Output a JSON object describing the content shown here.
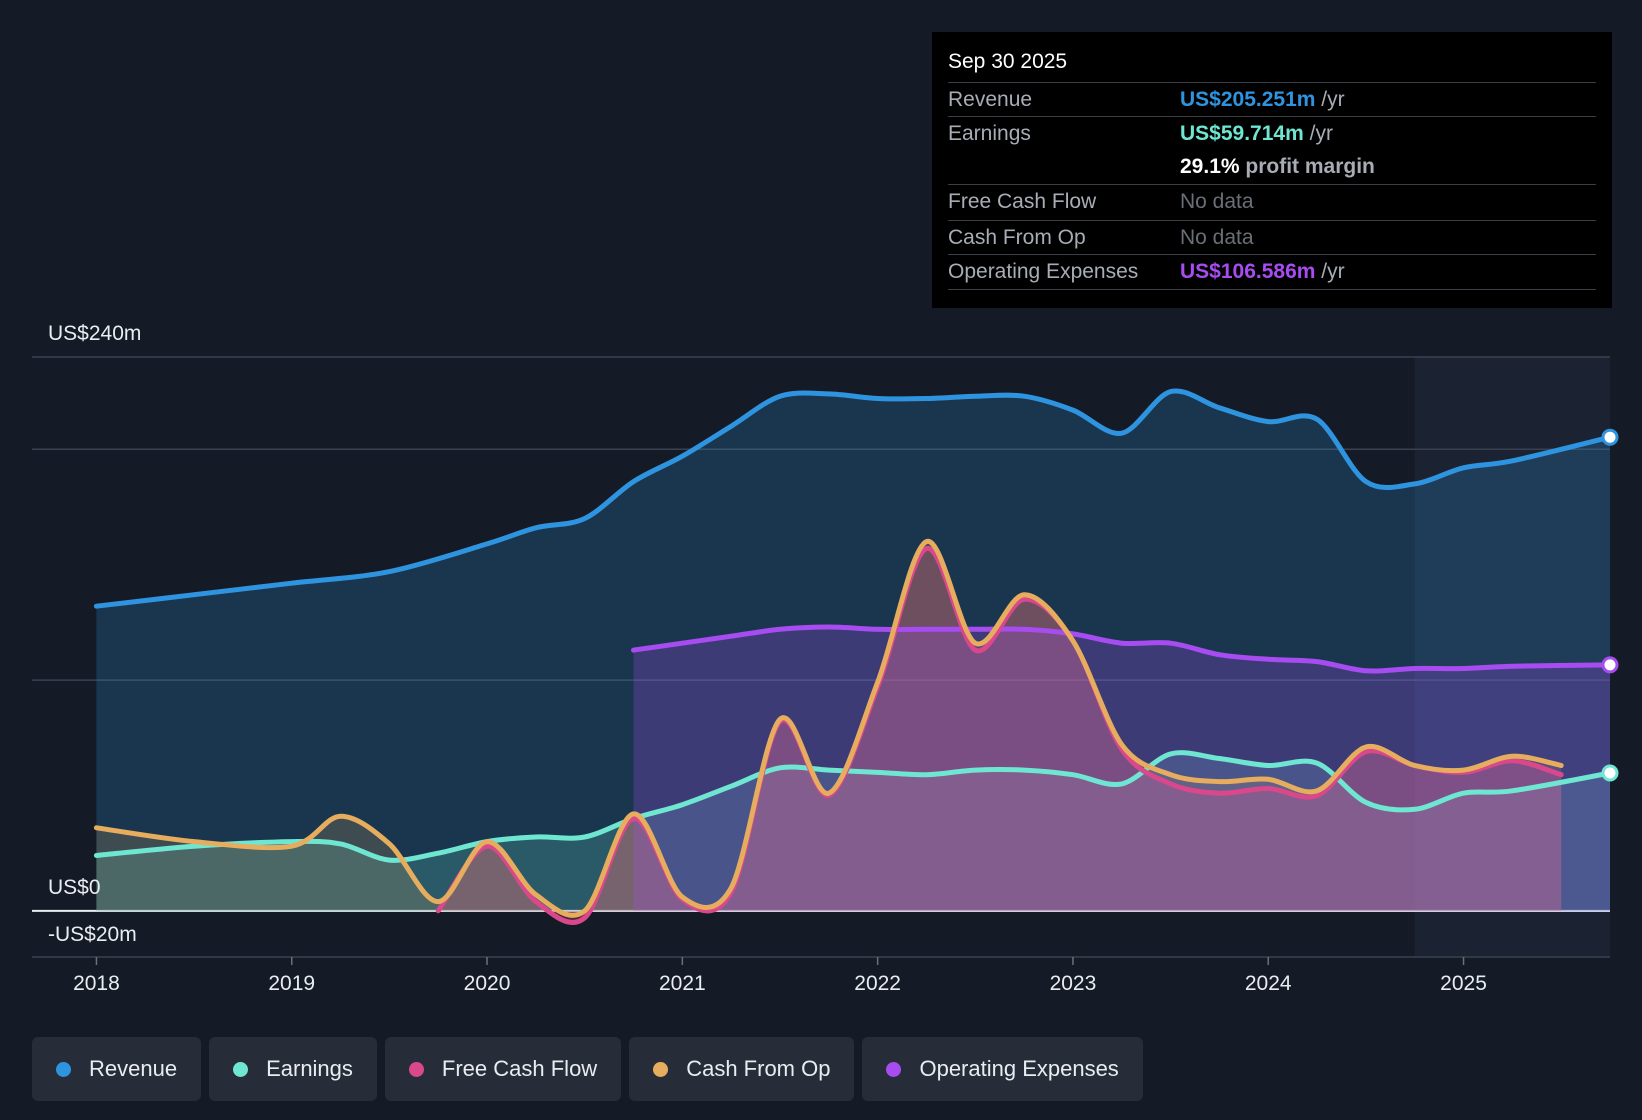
{
  "tooltip": {
    "date": "Sep 30 2025",
    "revenue_label": "Revenue",
    "revenue_value": "US$205.251m",
    "revenue_unit": "/yr",
    "earnings_label": "Earnings",
    "earnings_value": "US$59.714m",
    "earnings_unit": "/yr",
    "margin_value": "29.1%",
    "margin_label": "profit margin",
    "fcf_label": "Free Cash Flow",
    "fcf_value": "No data",
    "cfo_label": "Cash From Op",
    "cfo_value": "No data",
    "opex_label": "Operating Expenses",
    "opex_value": "US$106.586m",
    "opex_unit": "/yr"
  },
  "legend": [
    {
      "label": "Revenue",
      "color": "#2f94e0"
    },
    {
      "label": "Earnings",
      "color": "#6ee6d1"
    },
    {
      "label": "Free Cash Flow",
      "color": "#d9488a"
    },
    {
      "label": "Cash From Op",
      "color": "#e6ad5e"
    },
    {
      "label": "Operating Expenses",
      "color": "#a64cf0"
    }
  ],
  "chart_data": {
    "type": "area",
    "ylim": [
      -20,
      240
    ],
    "y_tick_labels": {
      "top": "US$240m",
      "zero": "US$0",
      "bottom": "-US$20m"
    },
    "x_tick_labels": [
      "2018",
      "2019",
      "2020",
      "2021",
      "2022",
      "2023",
      "2024",
      "2025"
    ],
    "x_domain": [
      2017.67,
      2025.75
    ],
    "forecast_start": 2024.75,
    "series": [
      {
        "name": "Revenue",
        "color": "#2f94e0",
        "points": [
          [
            2018,
            132
          ],
          [
            2018.5,
            137
          ],
          [
            2019,
            142
          ],
          [
            2019.5,
            147
          ],
          [
            2020,
            159
          ],
          [
            2020.25,
            166
          ],
          [
            2020.5,
            170
          ],
          [
            2020.75,
            186
          ],
          [
            2021,
            197
          ],
          [
            2021.25,
            210
          ],
          [
            2021.5,
            223
          ],
          [
            2021.75,
            224
          ],
          [
            2022,
            222
          ],
          [
            2022.25,
            222
          ],
          [
            2022.5,
            223
          ],
          [
            2022.75,
            223
          ],
          [
            2023,
            217
          ],
          [
            2023.25,
            207
          ],
          [
            2023.5,
            225
          ],
          [
            2023.75,
            218
          ],
          [
            2024,
            212
          ],
          [
            2024.25,
            213
          ],
          [
            2024.5,
            186
          ],
          [
            2024.75,
            185
          ],
          [
            2025,
            192
          ],
          [
            2025.25,
            195
          ],
          [
            2025.75,
            205.251
          ]
        ]
      },
      {
        "name": "Earnings",
        "color": "#6ee6d1",
        "points": [
          [
            2018,
            24
          ],
          [
            2018.5,
            28
          ],
          [
            2019,
            30
          ],
          [
            2019.25,
            29
          ],
          [
            2019.5,
            22
          ],
          [
            2019.75,
            25
          ],
          [
            2020,
            30
          ],
          [
            2020.25,
            32
          ],
          [
            2020.5,
            32
          ],
          [
            2020.75,
            40
          ],
          [
            2021,
            46
          ],
          [
            2021.25,
            54
          ],
          [
            2021.5,
            62
          ],
          [
            2021.75,
            61
          ],
          [
            2022,
            60
          ],
          [
            2022.25,
            59
          ],
          [
            2022.5,
            61
          ],
          [
            2022.75,
            61
          ],
          [
            2023,
            59
          ],
          [
            2023.25,
            55
          ],
          [
            2023.5,
            68
          ],
          [
            2023.75,
            66
          ],
          [
            2024,
            63
          ],
          [
            2024.25,
            64
          ],
          [
            2024.5,
            47
          ],
          [
            2024.75,
            44
          ],
          [
            2025,
            51
          ],
          [
            2025.25,
            52
          ],
          [
            2025.75,
            59.714
          ]
        ]
      },
      {
        "name": "Free Cash Flow",
        "color": "#d9488a",
        "points": [
          [
            2019.75,
            0
          ],
          [
            2020,
            28
          ],
          [
            2020.25,
            4
          ],
          [
            2020.5,
            -3
          ],
          [
            2020.75,
            40
          ],
          [
            2021,
            5
          ],
          [
            2021.25,
            8
          ],
          [
            2021.5,
            82
          ],
          [
            2021.75,
            50
          ],
          [
            2022,
            97
          ],
          [
            2022.25,
            157
          ],
          [
            2022.5,
            113
          ],
          [
            2022.75,
            135
          ],
          [
            2023,
            117
          ],
          [
            2023.25,
            70
          ],
          [
            2023.5,
            55
          ],
          [
            2023.75,
            51
          ],
          [
            2024,
            53
          ],
          [
            2024.25,
            50
          ],
          [
            2024.5,
            69
          ],
          [
            2024.75,
            63
          ],
          [
            2025,
            60
          ],
          [
            2025.25,
            65
          ],
          [
            2025.5,
            59
          ]
        ]
      },
      {
        "name": "Cash From Op",
        "color": "#e6ad5e",
        "points": [
          [
            2018,
            36
          ],
          [
            2018.5,
            30
          ],
          [
            2019,
            28
          ],
          [
            2019.25,
            41
          ],
          [
            2019.5,
            29
          ],
          [
            2019.75,
            4
          ],
          [
            2020,
            30
          ],
          [
            2020.25,
            7
          ],
          [
            2020.5,
            0
          ],
          [
            2020.75,
            42
          ],
          [
            2021,
            6
          ],
          [
            2021.25,
            10
          ],
          [
            2021.5,
            83
          ],
          [
            2021.75,
            51
          ],
          [
            2022,
            99
          ],
          [
            2022.25,
            160
          ],
          [
            2022.5,
            116
          ],
          [
            2022.75,
            137
          ],
          [
            2023,
            117
          ],
          [
            2023.25,
            72
          ],
          [
            2023.5,
            59
          ],
          [
            2023.75,
            56
          ],
          [
            2024,
            57
          ],
          [
            2024.25,
            52
          ],
          [
            2024.5,
            71
          ],
          [
            2024.75,
            63
          ],
          [
            2025,
            61
          ],
          [
            2025.25,
            67
          ],
          [
            2025.5,
            63
          ]
        ]
      },
      {
        "name": "Operating Expenses",
        "color": "#a64cf0",
        "points": [
          [
            2020.75,
            113
          ],
          [
            2021,
            116
          ],
          [
            2021.25,
            119
          ],
          [
            2021.5,
            122
          ],
          [
            2021.75,
            123
          ],
          [
            2022,
            122
          ],
          [
            2022.25,
            122
          ],
          [
            2022.5,
            122
          ],
          [
            2022.75,
            122
          ],
          [
            2023,
            120
          ],
          [
            2023.25,
            116
          ],
          [
            2023.5,
            116
          ],
          [
            2023.75,
            111
          ],
          [
            2024,
            109
          ],
          [
            2024.25,
            108
          ],
          [
            2024.5,
            104
          ],
          [
            2024.75,
            105
          ],
          [
            2025,
            105
          ],
          [
            2025.25,
            106
          ],
          [
            2025.75,
            106.586
          ]
        ]
      }
    ]
  }
}
